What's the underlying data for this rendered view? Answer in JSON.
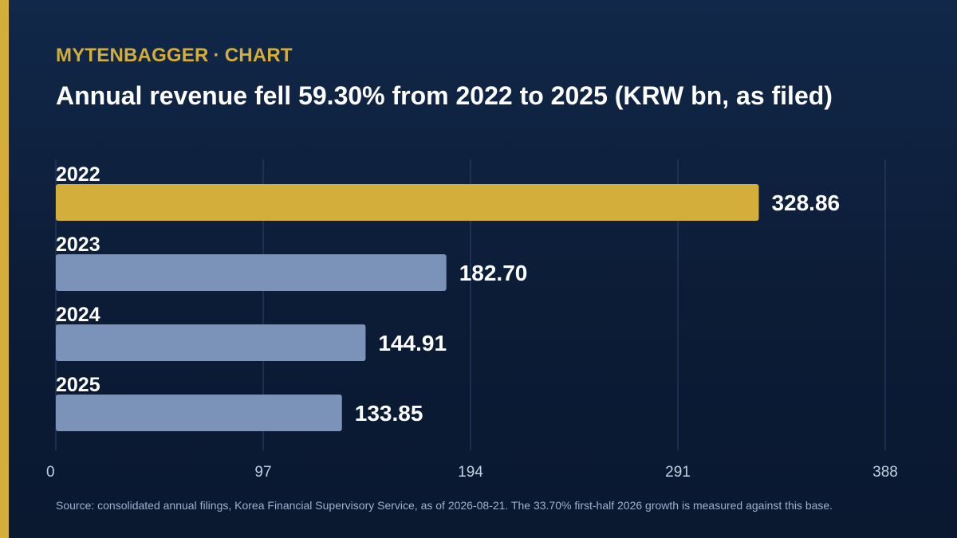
{
  "header": {
    "brand_name": "MYTENBAGGER",
    "brand_separator": "·",
    "brand_section": "CHART",
    "title": "Annual revenue fell 59.30% from 2022 to 2025 (KRW bn, as filed)"
  },
  "footer": {
    "source": "Source: consolidated annual filings, Korea Financial Supervisory Service, as of 2026-08-21. The 33.70% first-half 2026 growth is measured against this base."
  },
  "colors": {
    "accent": "#d4ae3a",
    "bar_highlight": "#d4ae3a",
    "bar_default": "#7b93b8",
    "gridline": "#2c4368",
    "text": "#ffffff",
    "tick_text": "#c4cfe0"
  },
  "chart_data": {
    "type": "bar",
    "orientation": "horizontal",
    "categories": [
      "2022",
      "2023",
      "2024",
      "2025"
    ],
    "values": [
      328.86,
      182.7,
      144.91,
      133.85
    ],
    "value_labels": [
      "328.86",
      "182.70",
      "144.91",
      "133.85"
    ],
    "highlight": [
      "2022"
    ],
    "xlim": [
      0,
      388
    ],
    "xticks": [
      0,
      97,
      194,
      291,
      388
    ],
    "grid": true,
    "title": "Annual revenue fell 59.30% from 2022 to 2025 (KRW bn, as filed)",
    "xlabel": "",
    "ylabel": ""
  }
}
